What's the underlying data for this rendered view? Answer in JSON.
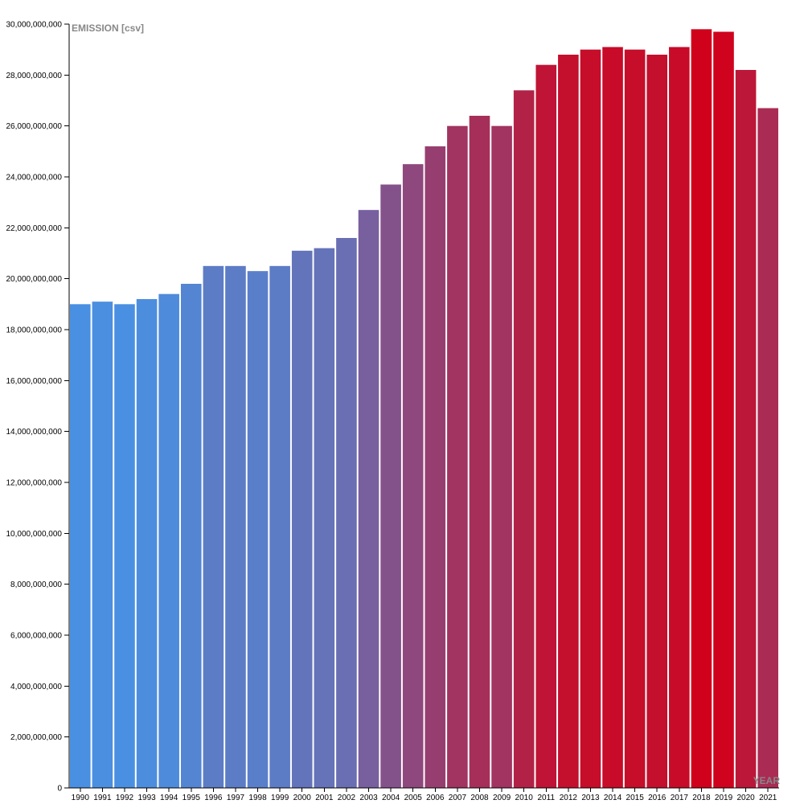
{
  "chart_data": {
    "type": "bar",
    "ylabel": "EMISSION [csv]",
    "xlabel": "YEAR",
    "ylim": [
      0,
      30000000000
    ],
    "yticks": [
      0,
      2000000000,
      4000000000,
      6000000000,
      8000000000,
      10000000000,
      12000000000,
      14000000000,
      16000000000,
      18000000000,
      20000000000,
      22000000000,
      24000000000,
      26000000000,
      28000000000,
      30000000000
    ],
    "ytick_labels": [
      "0",
      "2,000,000,000",
      "4,000,000,000",
      "6,000,000,000",
      "8,000,000,000",
      "10,000,000,000",
      "12,000,000,000",
      "14,000,000,000",
      "16,000,000,000",
      "18,000,000,000",
      "20,000,000,000",
      "22,000,000,000",
      "24,000,000,000",
      "26,000,000,000",
      "28,000,000,000",
      "30,000,000,000"
    ],
    "categories": [
      "1990",
      "1991",
      "1992",
      "1993",
      "1994",
      "1995",
      "1996",
      "1997",
      "1998",
      "1999",
      "2000",
      "2001",
      "2002",
      "2003",
      "2004",
      "2005",
      "2006",
      "2007",
      "2008",
      "2009",
      "2010",
      "2011",
      "2012",
      "2013",
      "2014",
      "2015",
      "2016",
      "2017",
      "2018",
      "2019",
      "2020",
      "2021"
    ],
    "values": [
      19000000000,
      19100000000,
      19000000000,
      19200000000,
      19400000000,
      19800000000,
      20500000000,
      20500000000,
      20300000000,
      20500000000,
      21100000000,
      21200000000,
      21600000000,
      22700000000,
      23700000000,
      24500000000,
      25200000000,
      26000000000,
      26400000000,
      26000000000,
      27400000000,
      28400000000,
      28800000000,
      29000000000,
      29100000000,
      29000000000,
      28800000000,
      29100000000,
      29800000000,
      29700000000,
      28200000000,
      26700000000
    ],
    "grid": false,
    "colors": {
      "low": "#4a90e2",
      "high": "#d0021b",
      "axis_title": "#888888"
    }
  }
}
